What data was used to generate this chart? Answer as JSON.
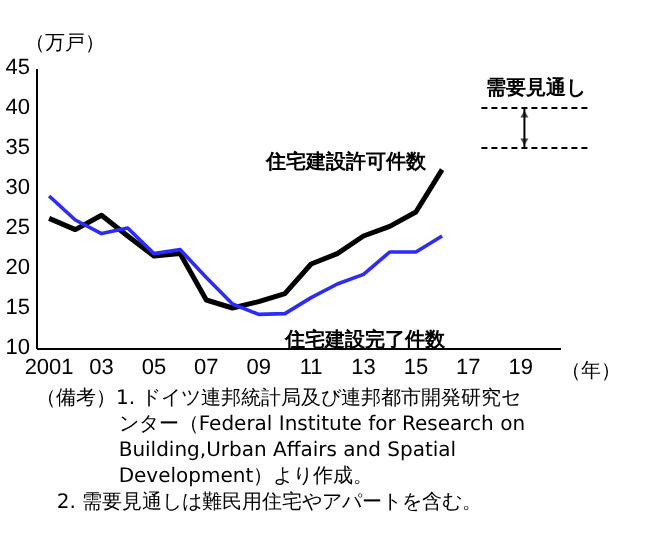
{
  "chart_data": {
    "type": "line",
    "x": [
      2001,
      2002,
      2003,
      2004,
      2005,
      2006,
      2007,
      2008,
      2009,
      2010,
      2011,
      2012,
      2013,
      2014,
      2015,
      2016
    ],
    "series": [
      {
        "name": "住宅建設許可件数",
        "color": "#000000",
        "values": [
          26.2,
          24.8,
          26.6,
          24.0,
          21.5,
          21.8,
          16.0,
          15.0,
          15.8,
          16.8,
          20.5,
          21.8,
          24.0,
          25.2,
          27.0,
          32.3
        ]
      },
      {
        "name": "住宅建設完了件数",
        "color": "#2b2bff",
        "values": [
          29.0,
          26.0,
          24.3,
          25.0,
          21.8,
          22.3,
          18.8,
          15.5,
          14.2,
          14.3,
          16.3,
          18.0,
          19.2,
          22.0,
          22.0,
          24.0
        ]
      }
    ],
    "xlim": [
      2000.5,
      2020.5
    ],
    "xticks": [
      {
        "value": 2001,
        "label": "2001"
      },
      {
        "value": 2003,
        "label": "03"
      },
      {
        "value": 2005,
        "label": "05"
      },
      {
        "value": 2007,
        "label": "07"
      },
      {
        "value": 2009,
        "label": "09"
      },
      {
        "value": 2011,
        "label": "11"
      },
      {
        "value": 2013,
        "label": "13"
      },
      {
        "value": 2015,
        "label": "15"
      },
      {
        "value": 2017,
        "label": "17"
      },
      {
        "value": 2019,
        "label": "19"
      }
    ],
    "ylim": [
      10,
      45
    ],
    "yticks": [
      10,
      15,
      20,
      25,
      30,
      35,
      40,
      45
    ],
    "ylabel": "（万戸）",
    "xlabel": "（年）",
    "ref_lines": [
      {
        "axis": "y",
        "value": 40,
        "label": "需要見通し",
        "color": "#000000",
        "line_style": "dashed"
      },
      {
        "axis": "y",
        "value": 35,
        "color": "#000000",
        "line_style": "dashed"
      }
    ],
    "grid": false,
    "legend": false,
    "marker": "none",
    "line_style": "solid",
    "annotations": [
      "（備考）1. ドイツ連邦統計局及び連邦都市開発研究セ",
      "ンター（Federal Institute for Research on",
      "Building,Urban Affairs and Spatial",
      "Development）より作成。",
      "2. 需要見通しは難民用住宅やアパートを含む。"
    ]
  }
}
